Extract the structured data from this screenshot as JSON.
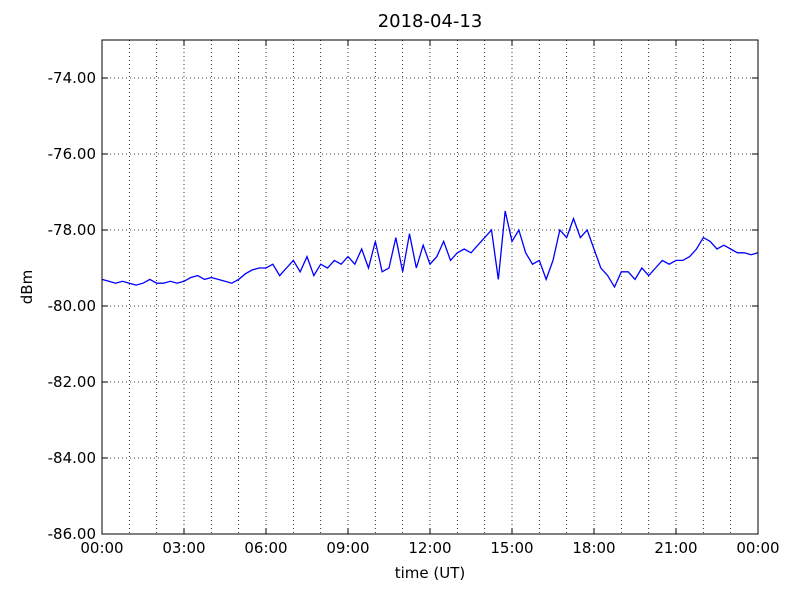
{
  "chart_data": {
    "type": "line",
    "title": "2018-04-13",
    "xlabel": "time (UT)",
    "ylabel": "dBm",
    "x": [
      0,
      0.25,
      0.5,
      0.75,
      1,
      1.25,
      1.5,
      1.75,
      2,
      2.25,
      2.5,
      2.75,
      3,
      3.25,
      3.5,
      3.75,
      4,
      4.25,
      4.5,
      4.75,
      5,
      5.25,
      5.5,
      5.75,
      6,
      6.25,
      6.5,
      6.75,
      7,
      7.25,
      7.5,
      7.75,
      8,
      8.25,
      8.5,
      8.75,
      9,
      9.25,
      9.5,
      9.75,
      10,
      10.25,
      10.5,
      10.75,
      11,
      11.25,
      11.5,
      11.75,
      12,
      12.25,
      12.5,
      12.75,
      13,
      13.25,
      13.5,
      13.75,
      14,
      14.25,
      14.5,
      14.75,
      15,
      15.25,
      15.5,
      15.75,
      16,
      16.25,
      16.5,
      16.75,
      17,
      17.25,
      17.5,
      17.75,
      18,
      18.25,
      18.5,
      18.75,
      19,
      19.25,
      19.5,
      19.75,
      20,
      20.25,
      20.5,
      20.75,
      21,
      21.25,
      21.5,
      21.75,
      22,
      22.25,
      22.5,
      22.75,
      23,
      23.25,
      23.5,
      23.75,
      24
    ],
    "series": [
      {
        "name": "dBm",
        "color": "#0000ff",
        "values": [
          -79.3,
          -79.35,
          -79.4,
          -79.35,
          -79.4,
          -79.45,
          -79.4,
          -79.3,
          -79.4,
          -79.4,
          -79.35,
          -79.4,
          -79.35,
          -79.25,
          -79.2,
          -79.3,
          -79.25,
          -79.3,
          -79.35,
          -79.4,
          -79.3,
          -79.15,
          -79.05,
          -79.0,
          -79.0,
          -78.9,
          -79.2,
          -79.0,
          -78.8,
          -79.1,
          -78.7,
          -79.2,
          -78.9,
          -79.0,
          -78.8,
          -78.9,
          -78.7,
          -78.9,
          -78.5,
          -79.0,
          -78.3,
          -79.1,
          -79.0,
          -78.2,
          -79.1,
          -78.1,
          -79.0,
          -78.4,
          -78.9,
          -78.7,
          -78.3,
          -78.8,
          -78.6,
          -78.5,
          -78.6,
          -78.4,
          -78.2,
          -78.0,
          -79.3,
          -77.5,
          -78.3,
          -78.0,
          -78.6,
          -78.9,
          -78.8,
          -79.3,
          -78.8,
          -78.0,
          -78.2,
          -77.7,
          -78.2,
          -78.0,
          -78.5,
          -79.0,
          -79.2,
          -79.5,
          -79.1,
          -79.1,
          -79.3,
          -79.0,
          -79.2,
          -79.0,
          -78.8,
          -78.9,
          -78.8,
          -78.8,
          -78.7,
          -78.5,
          -78.2,
          -78.3,
          -78.5,
          -78.4,
          -78.5,
          -78.6,
          -78.6,
          -78.65,
          -78.6
        ]
      }
    ],
    "xlim": [
      0,
      24
    ],
    "xticks": [
      {
        "value": 0,
        "label": "00:00"
      },
      {
        "value": 3,
        "label": "03:00"
      },
      {
        "value": 6,
        "label": "06:00"
      },
      {
        "value": 9,
        "label": "09:00"
      },
      {
        "value": 12,
        "label": "12:00"
      },
      {
        "value": 15,
        "label": "15:00"
      },
      {
        "value": 18,
        "label": "18:00"
      },
      {
        "value": 21,
        "label": "21:00"
      },
      {
        "value": 24,
        "label": "00:00"
      }
    ],
    "xgrid_minor": [
      1,
      2,
      4,
      5,
      7,
      8,
      10,
      11,
      13,
      14,
      16,
      17,
      19,
      20,
      22,
      23
    ],
    "ylim": [
      -86,
      -73
    ],
    "yticks": [
      {
        "value": -86,
        "label": "-86.00"
      },
      {
        "value": -84,
        "label": "-84.00"
      },
      {
        "value": -82,
        "label": "-82.00"
      },
      {
        "value": -80,
        "label": "-80.00"
      },
      {
        "value": -78,
        "label": "-78.00"
      },
      {
        "value": -76,
        "label": "-76.00"
      },
      {
        "value": -74,
        "label": "-74.00"
      }
    ],
    "grid": true
  }
}
